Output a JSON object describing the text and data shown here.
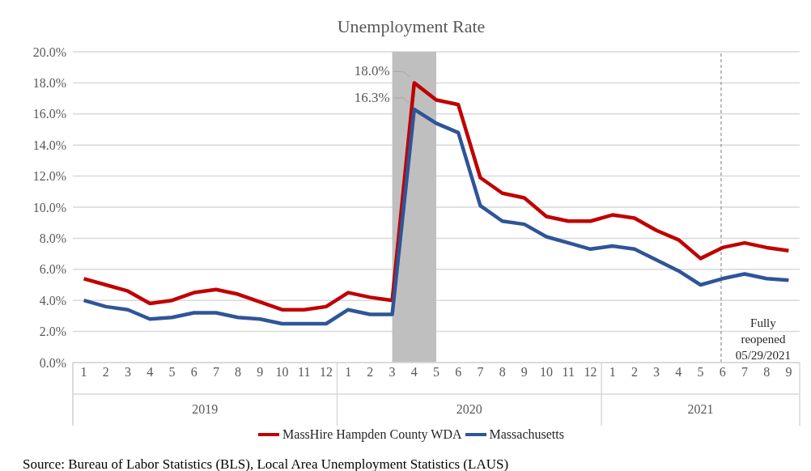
{
  "chart_data": {
    "type": "line",
    "title": "Unemployment Rate",
    "x": [
      "2019-01",
      "2019-02",
      "2019-03",
      "2019-04",
      "2019-05",
      "2019-06",
      "2019-07",
      "2019-08",
      "2019-09",
      "2019-10",
      "2019-11",
      "2019-12",
      "2020-01",
      "2020-02",
      "2020-03",
      "2020-04",
      "2020-05",
      "2020-06",
      "2020-07",
      "2020-08",
      "2020-09",
      "2020-10",
      "2020-11",
      "2020-12",
      "2021-01",
      "2021-02",
      "2021-03",
      "2021-04",
      "2021-05",
      "2021-06",
      "2021-07",
      "2021-08",
      "2021-09"
    ],
    "series": [
      {
        "name": "MassHire Hampden County WDA",
        "color": "#c00000",
        "values": [
          5.4,
          5.0,
          4.6,
          3.8,
          4.0,
          4.5,
          4.7,
          4.4,
          3.9,
          3.4,
          3.4,
          3.6,
          4.5,
          4.2,
          4.0,
          18.0,
          16.9,
          16.6,
          11.9,
          10.9,
          10.6,
          9.4,
          9.1,
          9.1,
          9.5,
          9.3,
          8.5,
          7.9,
          6.7,
          7.4,
          7.7,
          7.4,
          7.2
        ],
        "value_labels": [
          null,
          null,
          null,
          null,
          null,
          null,
          null,
          null,
          null,
          null,
          null,
          null,
          null,
          null,
          null,
          "18.0%",
          null,
          null,
          null,
          null,
          null,
          null,
          null,
          null,
          null,
          null,
          null,
          null,
          null,
          null,
          null,
          null,
          null
        ]
      },
      {
        "name": "Massachusetts",
        "color": "#2f5597",
        "values": [
          4.0,
          3.6,
          3.4,
          2.8,
          2.9,
          3.2,
          3.2,
          2.9,
          2.8,
          2.5,
          2.5,
          2.5,
          3.4,
          3.1,
          3.1,
          16.3,
          15.4,
          14.8,
          10.1,
          9.1,
          8.9,
          8.1,
          7.7,
          7.3,
          7.5,
          7.3,
          6.6,
          5.9,
          5.0,
          5.4,
          5.7,
          5.4,
          5.3
        ],
        "value_labels": [
          null,
          null,
          null,
          null,
          null,
          null,
          null,
          null,
          null,
          null,
          null,
          null,
          null,
          null,
          null,
          "16.3%",
          null,
          null,
          null,
          null,
          null,
          null,
          null,
          null,
          null,
          null,
          null,
          null,
          null,
          null,
          null,
          null,
          null
        ]
      }
    ],
    "xlim": [
      "2018-12-16",
      "2021-09-16"
    ],
    "xticks": [
      {
        "value": "2019-01",
        "label": "1"
      },
      {
        "value": "2019-02",
        "label": "2"
      },
      {
        "value": "2019-03",
        "label": "3"
      },
      {
        "value": "2019-04",
        "label": "4"
      },
      {
        "value": "2019-05",
        "label": "5"
      },
      {
        "value": "2019-06",
        "label": "6"
      },
      {
        "value": "2019-07",
        "label": "7"
      },
      {
        "value": "2019-08",
        "label": "8"
      },
      {
        "value": "2019-09",
        "label": "9"
      },
      {
        "value": "2019-10",
        "label": "10"
      },
      {
        "value": "2019-11",
        "label": "11"
      },
      {
        "value": "2019-12",
        "label": "12"
      },
      {
        "value": "2020-01",
        "label": "1"
      },
      {
        "value": "2020-02",
        "label": "2"
      },
      {
        "value": "2020-03",
        "label": "3"
      },
      {
        "value": "2020-04",
        "label": "4"
      },
      {
        "value": "2020-05",
        "label": "5"
      },
      {
        "value": "2020-06",
        "label": "6"
      },
      {
        "value": "2020-07",
        "label": "7"
      },
      {
        "value": "2020-08",
        "label": "8"
      },
      {
        "value": "2020-09",
        "label": "9"
      },
      {
        "value": "2020-10",
        "label": "10"
      },
      {
        "value": "2020-11",
        "label": "11"
      },
      {
        "value": "2020-12",
        "label": "12"
      },
      {
        "value": "2021-01",
        "label": "1"
      },
      {
        "value": "2021-02",
        "label": "2"
      },
      {
        "value": "2021-03",
        "label": "3"
      },
      {
        "value": "2021-04",
        "label": "4"
      },
      {
        "value": "2021-05",
        "label": "5"
      },
      {
        "value": "2021-06",
        "label": "6"
      },
      {
        "value": "2021-07",
        "label": "7"
      },
      {
        "value": "2021-08",
        "label": "8"
      },
      {
        "value": "2021-09",
        "label": "9"
      }
    ],
    "ylim": [
      0,
      20
    ],
    "yticks": [
      {
        "value": 0,
        "label": "0.0%"
      },
      {
        "value": 2,
        "label": "2.0%"
      },
      {
        "value": 4,
        "label": "4.0%"
      },
      {
        "value": 6,
        "label": "6.0%"
      },
      {
        "value": 8,
        "label": "8.0%"
      },
      {
        "value": 10,
        "label": "10.0%"
      },
      {
        "value": 12,
        "label": "12.0%"
      },
      {
        "value": 14,
        "label": "14.0%"
      },
      {
        "value": 16,
        "label": "16.0%"
      },
      {
        "value": 18,
        "label": "18.0%"
      },
      {
        "value": 20,
        "label": "20.0%"
      }
    ],
    "bands": [
      {
        "axis": "x",
        "from": "2020-03",
        "to": "2020-05",
        "color": "#bfbfbf"
      }
    ],
    "ref_lines": [
      {
        "axis": "x",
        "value": "2021-05-29",
        "label": "Fully reopened 05/29/2021",
        "color": "#7f7f7f",
        "line_style": "dashed"
      }
    ],
    "grid": "y",
    "legend": "bottom",
    "marker": "none",
    "line_style": "solid",
    "annotations": [
      "2019",
      "2020",
      "2021",
      "Source: Bureau of Labor Statistics (BLS), Local Area Unemployment Statistics (LAUS)"
    ]
  }
}
